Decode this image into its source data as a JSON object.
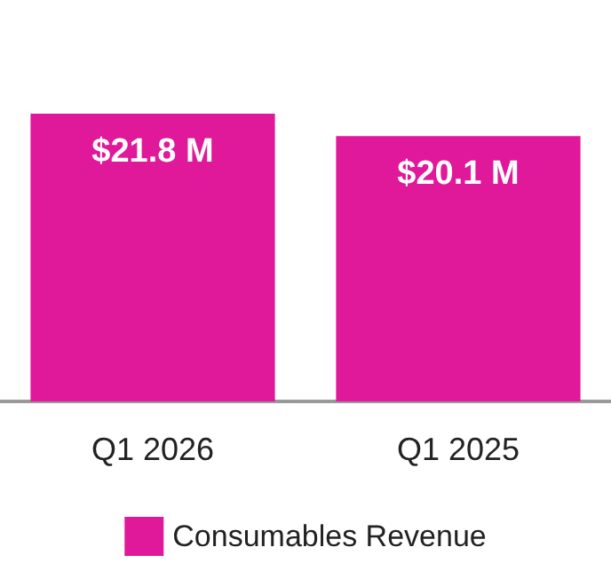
{
  "chart_data": {
    "type": "bar",
    "categories": [
      "Q1 2026",
      "Q1 2025"
    ],
    "series": [
      {
        "name": "Consumables Revenue",
        "color": "#e0189a",
        "values": [
          21.8,
          20.1
        ],
        "value_labels": [
          "$21.8 M",
          "$20.1 M"
        ]
      }
    ],
    "legend": "bottom"
  }
}
